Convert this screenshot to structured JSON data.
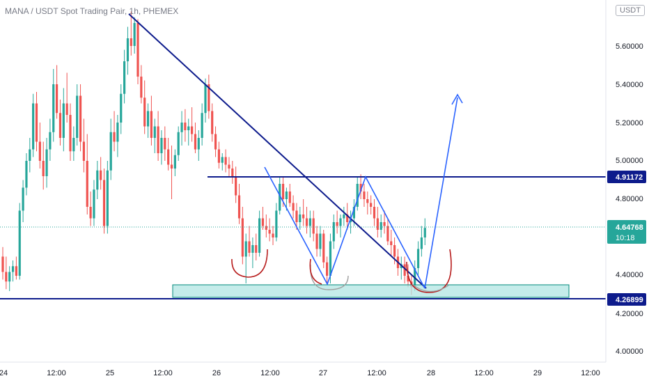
{
  "chart_data": {
    "type": "candlestick",
    "title": "MANA / USDT Spot Trading Pair, 1h, PHEMEX",
    "currency_unit": "USDT",
    "y_axis": {
      "ticks": [
        5.6,
        5.4,
        5.2,
        5.0,
        4.8,
        4.4,
        4.2,
        4.0
      ],
      "tick_labels": [
        "5.60000",
        "5.40000",
        "5.20000",
        "5.00000",
        "4.80000",
        "4.40000",
        "4.20000",
        "4.00000"
      ],
      "ylim": [
        3.95,
        5.78
      ]
    },
    "x_axis": {
      "tick_labels": [
        "24",
        "12:00",
        "25",
        "12:00",
        "26",
        "12:00",
        "27",
        "12:00",
        "28",
        "12:00",
        "29",
        "12:00"
      ]
    },
    "price_labels": [
      {
        "name": "resistance",
        "value": 4.91172,
        "text": "4.91172",
        "color": "#0d1b8c"
      },
      {
        "name": "last-price",
        "value": 4.64768,
        "text": "4.64768",
        "sub_text": "10:18",
        "color": "#26a69a"
      },
      {
        "name": "support",
        "value": 4.26899,
        "text": "4.26899",
        "color": "#0d1b8c"
      }
    ],
    "colors": {
      "up": "#26a69a",
      "down": "#ef5350",
      "trendline": "#0d1b8c",
      "pattern": "#2962ff",
      "curve_red": "#b71c1c",
      "curve_gray": "#9e9e9e",
      "zone_fill": "#b2e5e3",
      "zone_stroke": "#00897b"
    },
    "candles_ohlc": [
      [
        4.5,
        4.55,
        4.38,
        4.42
      ],
      [
        4.42,
        4.5,
        4.33,
        4.37
      ],
      [
        4.37,
        4.45,
        4.32,
        4.42
      ],
      [
        4.42,
        4.48,
        4.37,
        4.45
      ],
      [
        4.45,
        4.5,
        4.38,
        4.4
      ],
      [
        4.4,
        4.78,
        4.38,
        4.74
      ],
      [
        4.74,
        4.9,
        4.68,
        4.86
      ],
      [
        4.86,
        5.04,
        4.82,
        5.0
      ],
      [
        5.0,
        5.12,
        4.94,
        5.06
      ],
      [
        5.06,
        5.35,
        5.02,
        5.3
      ],
      [
        5.3,
        5.36,
        5.05,
        5.1
      ],
      [
        5.1,
        5.2,
        4.96,
        5.0
      ],
      [
        5.0,
        5.1,
        4.85,
        4.92
      ],
      [
        4.92,
        5.12,
        4.86,
        5.06
      ],
      [
        5.06,
        5.22,
        5.0,
        5.15
      ],
      [
        5.15,
        5.48,
        5.1,
        5.4
      ],
      [
        5.4,
        5.5,
        5.22,
        5.25
      ],
      [
        5.25,
        5.32,
        5.08,
        5.12
      ],
      [
        5.12,
        5.38,
        5.05,
        5.3
      ],
      [
        5.3,
        5.46,
        5.2,
        5.24
      ],
      [
        5.24,
        5.3,
        5.0,
        5.05
      ],
      [
        5.05,
        5.18,
        5.0,
        5.12
      ],
      [
        5.12,
        5.4,
        5.08,
        5.34
      ],
      [
        5.34,
        5.4,
        5.05,
        5.1
      ],
      [
        5.1,
        5.22,
        4.94,
        5.0
      ],
      [
        5.0,
        5.14,
        4.72,
        4.76
      ],
      [
        4.76,
        4.84,
        4.66,
        4.7
      ],
      [
        4.7,
        4.9,
        4.66,
        4.85
      ],
      [
        4.85,
        5.0,
        4.8,
        4.95
      ],
      [
        4.95,
        5.02,
        4.85,
        4.9
      ],
      [
        4.9,
        4.96,
        4.62,
        4.66
      ],
      [
        4.66,
        5.0,
        4.62,
        4.95
      ],
      [
        4.95,
        5.22,
        4.9,
        5.15
      ],
      [
        5.15,
        5.26,
        5.05,
        5.1
      ],
      [
        5.1,
        5.24,
        5.02,
        5.2
      ],
      [
        5.2,
        5.4,
        5.14,
        5.35
      ],
      [
        5.35,
        5.58,
        5.3,
        5.52
      ],
      [
        5.52,
        5.7,
        5.45,
        5.64
      ],
      [
        5.64,
        5.78,
        5.55,
        5.6
      ],
      [
        5.6,
        5.75,
        5.56,
        5.72
      ],
      [
        5.72,
        5.74,
        5.4,
        5.44
      ],
      [
        5.44,
        5.5,
        5.3,
        5.33
      ],
      [
        5.33,
        5.42,
        5.14,
        5.18
      ],
      [
        5.18,
        5.3,
        5.12,
        5.26
      ],
      [
        5.26,
        5.34,
        5.08,
        5.12
      ],
      [
        5.12,
        5.22,
        5.04,
        5.18
      ],
      [
        5.18,
        5.26,
        5.0,
        5.04
      ],
      [
        5.04,
        5.16,
        4.98,
        5.12
      ],
      [
        5.12,
        5.18,
        5.0,
        5.06
      ],
      [
        5.06,
        5.12,
        4.95,
        4.98
      ],
      [
        4.98,
        5.08,
        4.8,
        4.96
      ],
      [
        4.96,
        5.06,
        4.92,
        5.03
      ],
      [
        5.03,
        5.18,
        5.0,
        5.15
      ],
      [
        5.15,
        5.26,
        5.08,
        5.2
      ],
      [
        5.2,
        5.27,
        5.1,
        5.16
      ],
      [
        5.16,
        5.22,
        5.08,
        5.18
      ],
      [
        5.18,
        5.28,
        5.1,
        5.14
      ],
      [
        5.14,
        5.2,
        5.04,
        5.06
      ],
      [
        5.06,
        5.16,
        5.0,
        5.12
      ],
      [
        5.12,
        5.3,
        5.08,
        5.25
      ],
      [
        5.25,
        5.43,
        5.2,
        5.4
      ],
      [
        5.4,
        5.45,
        5.22,
        5.26
      ],
      [
        5.26,
        5.3,
        5.1,
        5.14
      ],
      [
        5.14,
        5.18,
        5.02,
        5.06
      ],
      [
        5.06,
        5.1,
        4.96,
        4.99
      ],
      [
        4.99,
        5.04,
        4.95,
        5.02
      ],
      [
        5.02,
        5.06,
        4.94,
        4.98
      ],
      [
        4.98,
        5.02,
        4.92,
        4.96
      ],
      [
        4.96,
        5.0,
        4.88,
        4.92
      ],
      [
        4.92,
        4.97,
        4.78,
        4.82
      ],
      [
        4.82,
        4.88,
        4.67,
        4.7
      ],
      [
        4.7,
        4.76,
        4.46,
        4.5
      ],
      [
        4.5,
        4.62,
        4.36,
        4.58
      ],
      [
        4.58,
        4.66,
        4.5,
        4.52
      ],
      [
        4.52,
        4.6,
        4.44,
        4.56
      ],
      [
        4.56,
        4.62,
        4.48,
        4.52
      ],
      [
        4.52,
        4.74,
        4.5,
        4.7
      ],
      [
        4.7,
        4.76,
        4.64,
        4.66
      ],
      [
        4.66,
        4.72,
        4.6,
        4.64
      ],
      [
        4.64,
        4.7,
        4.58,
        4.62
      ],
      [
        4.62,
        4.66,
        4.56,
        4.6
      ],
      [
        4.6,
        4.78,
        4.58,
        4.74
      ],
      [
        4.74,
        4.92,
        4.72,
        4.88
      ],
      [
        4.88,
        4.92,
        4.76,
        4.8
      ],
      [
        4.8,
        4.86,
        4.74,
        4.84
      ],
      [
        4.84,
        4.88,
        4.76,
        4.78
      ],
      [
        4.78,
        4.82,
        4.7,
        4.74
      ],
      [
        4.74,
        4.78,
        4.64,
        4.68
      ],
      [
        4.68,
        4.76,
        4.64,
        4.72
      ],
      [
        4.72,
        4.8,
        4.66,
        4.7
      ],
      [
        4.7,
        4.76,
        4.62,
        4.66
      ],
      [
        4.66,
        4.74,
        4.6,
        4.7
      ],
      [
        4.7,
        4.74,
        4.58,
        4.62
      ],
      [
        4.62,
        4.66,
        4.5,
        4.54
      ],
      [
        4.54,
        4.66,
        4.5,
        4.62
      ],
      [
        4.62,
        4.64,
        4.44,
        4.47
      ],
      [
        4.47,
        4.5,
        4.36,
        4.4
      ],
      [
        4.4,
        4.62,
        4.36,
        4.58
      ],
      [
        4.58,
        4.72,
        4.54,
        4.68
      ],
      [
        4.68,
        4.74,
        4.62,
        4.66
      ],
      [
        4.66,
        4.72,
        4.6,
        4.7
      ],
      [
        4.7,
        4.76,
        4.66,
        4.72
      ],
      [
        4.72,
        4.78,
        4.64,
        4.68
      ],
      [
        4.68,
        4.74,
        4.62,
        4.7
      ],
      [
        4.7,
        4.8,
        4.66,
        4.76
      ],
      [
        4.76,
        4.92,
        4.74,
        4.88
      ],
      [
        4.88,
        4.93,
        4.8,
        4.84
      ],
      [
        4.84,
        4.88,
        4.76,
        4.8
      ],
      [
        4.8,
        4.84,
        4.72,
        4.78
      ],
      [
        4.78,
        4.82,
        4.72,
        4.76
      ],
      [
        4.76,
        4.8,
        4.66,
        4.7
      ],
      [
        4.7,
        4.76,
        4.6,
        4.64
      ],
      [
        4.64,
        4.72,
        4.6,
        4.68
      ],
      [
        4.68,
        4.74,
        4.62,
        4.66
      ],
      [
        4.66,
        4.7,
        4.56,
        4.58
      ],
      [
        4.58,
        4.64,
        4.5,
        4.56
      ],
      [
        4.56,
        4.6,
        4.46,
        4.5
      ],
      [
        4.5,
        4.54,
        4.4,
        4.44
      ],
      [
        4.44,
        4.5,
        4.38,
        4.46
      ],
      [
        4.46,
        4.5,
        4.36,
        4.4
      ],
      [
        4.4,
        4.46,
        4.34,
        4.37
      ],
      [
        4.37,
        4.4,
        4.3,
        4.34
      ],
      [
        4.34,
        4.48,
        4.32,
        4.44
      ],
      [
        4.44,
        4.58,
        4.4,
        4.54
      ],
      [
        4.54,
        4.66,
        4.5,
        4.6
      ],
      [
        4.6,
        4.7,
        4.56,
        4.65
      ]
    ]
  }
}
